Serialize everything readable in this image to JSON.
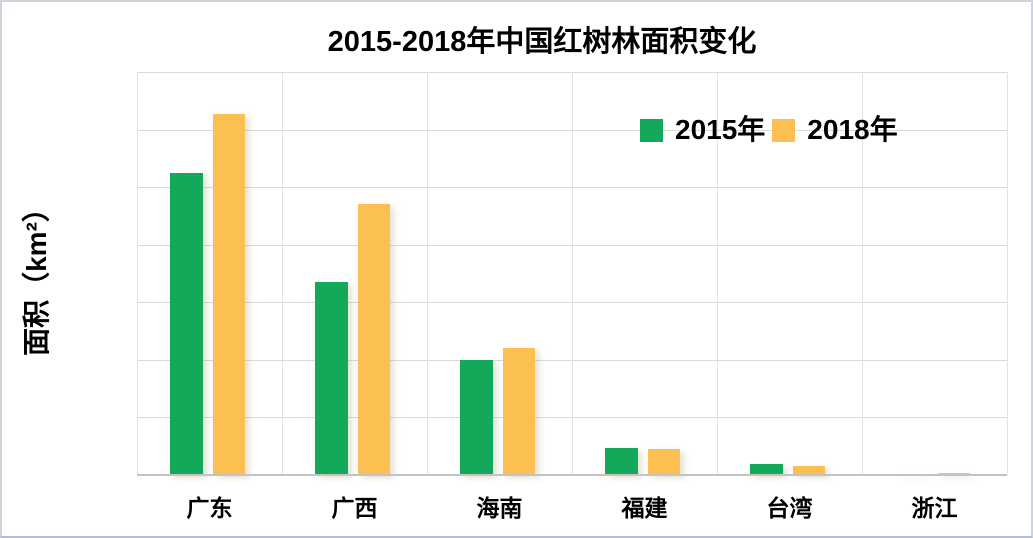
{
  "chart_data": {
    "type": "bar",
    "title": "2015-2018年中国红树林面积变化",
    "xlabel": "",
    "ylabel": "面积（km²）",
    "categories": [
      "广东",
      "广西",
      "海南",
      "福建",
      "台湾",
      "浙江"
    ],
    "series": [
      {
        "name": "2015年",
        "color": "#14a85a",
        "values": [
          105,
          67,
          40,
          9.5,
          4,
          0.2
        ]
      },
      {
        "name": "2018年",
        "color": "#fcc052",
        "values": [
          125.5,
          94.3,
          44,
          9,
          3.3,
          0.7
        ]
      }
    ],
    "ylim": [
      0,
      140
    ],
    "ytick_step": 20,
    "yticks": [
      "0",
      "20",
      "40",
      "60",
      "80",
      "100",
      "120",
      "140"
    ],
    "grid": true,
    "gridline_color": "#d9d9d9",
    "legend_position": "inside-top-right",
    "text_color": "#000000",
    "background_color": "#ffffff"
  }
}
